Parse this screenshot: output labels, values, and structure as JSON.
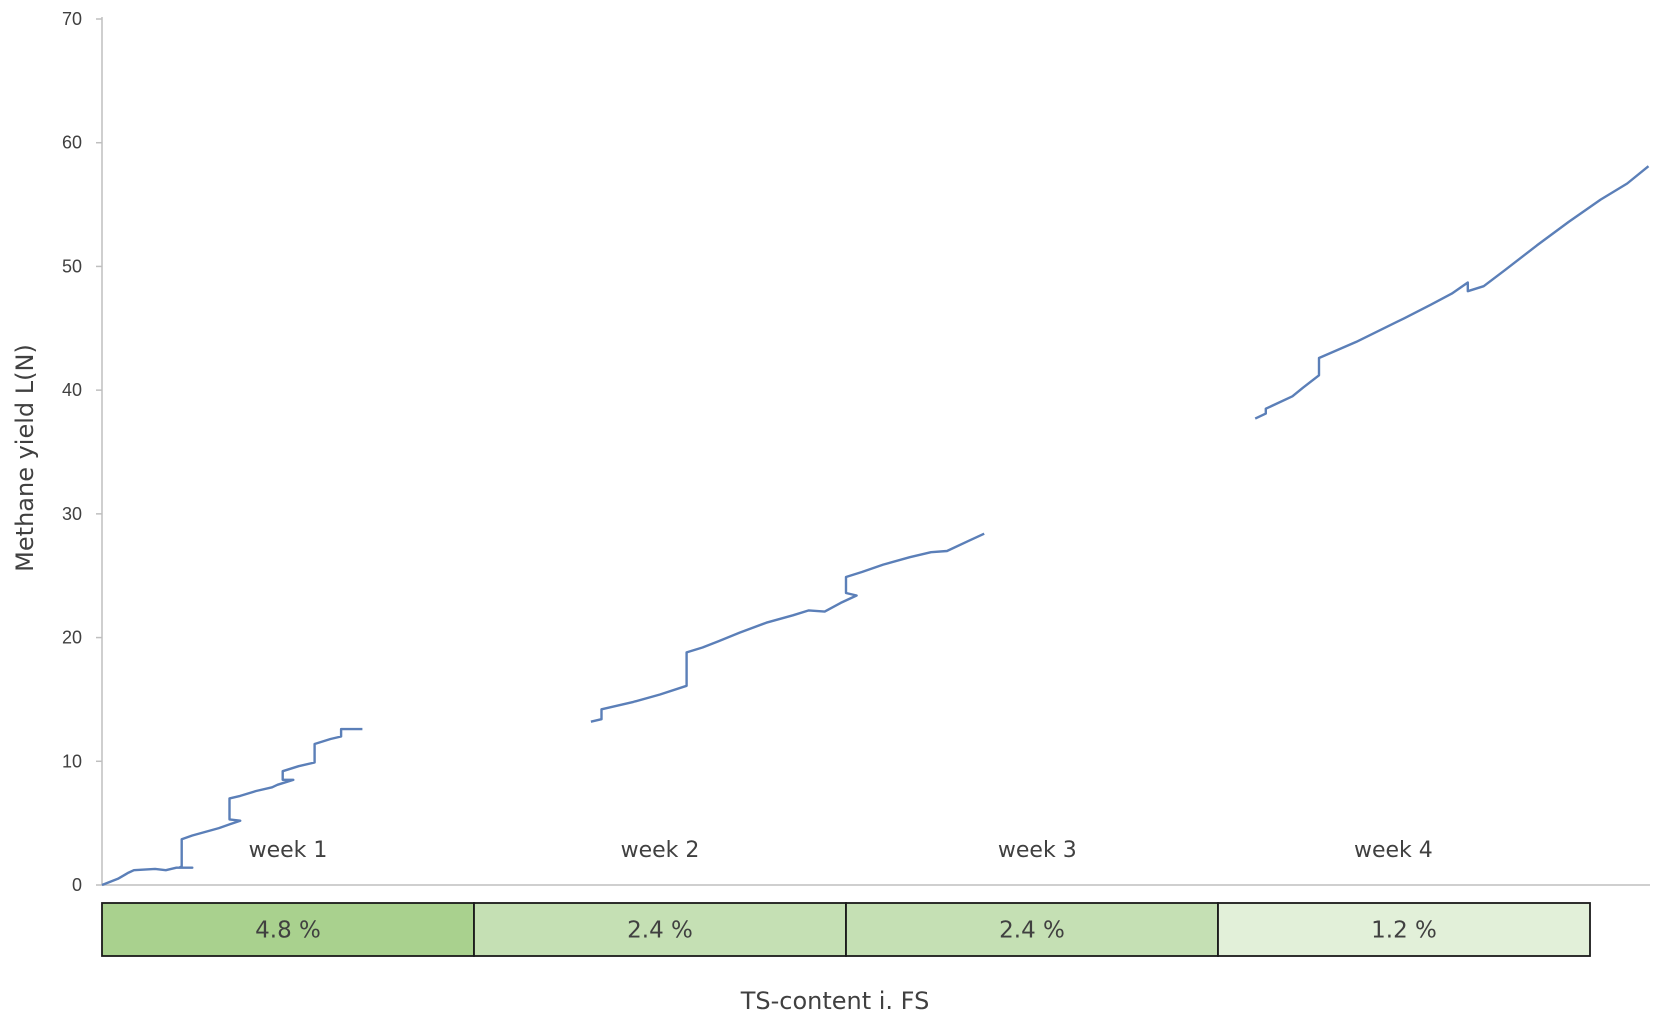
{
  "chart_data": {
    "type": "line",
    "title": "",
    "ylabel": "Methane yield L(N)",
    "xlabel": "TS-content i. FS",
    "ylim": [
      0,
      70
    ],
    "yticks": [
      0,
      10,
      20,
      30,
      40,
      50,
      60,
      70
    ],
    "xlim": [
      0,
      28
    ],
    "grid": false,
    "legend": "none",
    "line_color": "#5b7fb8",
    "week_labels": [
      {
        "label": "week 1",
        "x": 3.5
      },
      {
        "label": "week 2",
        "x": 10.5
      },
      {
        "label": "week 3",
        "x": 17.6
      },
      {
        "label": "week 4",
        "x": 24.3
      }
    ],
    "ts_bands": [
      {
        "label": "4.8 %",
        "x0": 0,
        "x1": 7,
        "color": "#a9d18e"
      },
      {
        "label": "2.4 %",
        "x0": 7,
        "x1": 14,
        "color": "#c5e0b4"
      },
      {
        "label": "2.4 %",
        "x0": 14,
        "x1": 21,
        "color": "#c5e0b4"
      },
      {
        "label": "1.2 %",
        "x0": 21,
        "x1": 28,
        "color": "#e2f0d9"
      }
    ],
    "series": [
      {
        "points": [
          [
            0.0,
            0.0
          ],
          [
            0.3,
            0.5
          ],
          [
            0.5,
            1.0
          ],
          [
            0.6,
            1.2
          ],
          [
            1.0,
            1.3
          ],
          [
            1.2,
            1.2
          ],
          [
            1.4,
            1.4
          ],
          [
            1.7,
            1.4
          ],
          [
            1.45,
            1.4
          ],
          [
            1.5,
            1.5
          ],
          [
            1.5,
            3.7
          ],
          [
            1.7,
            4.0
          ],
          [
            2.2,
            4.6
          ],
          [
            2.4,
            4.9
          ],
          [
            2.6,
            5.2
          ],
          [
            2.4,
            5.3
          ],
          [
            2.4,
            7.0
          ],
          [
            2.6,
            7.2
          ],
          [
            2.9,
            7.6
          ],
          [
            3.2,
            7.9
          ],
          [
            3.3,
            8.1
          ],
          [
            3.6,
            8.5
          ],
          [
            3.4,
            8.5
          ],
          [
            3.4,
            9.2
          ],
          [
            3.7,
            9.6
          ],
          [
            4.0,
            9.9
          ],
          [
            4.0,
            10.1
          ],
          [
            4.0,
            11.4
          ],
          [
            4.3,
            11.8
          ],
          [
            4.5,
            12.0
          ],
          [
            4.5,
            12.6
          ],
          [
            4.9,
            12.6
          ]
        ]
      },
      {
        "points": [
          [
            9.2,
            13.2
          ],
          [
            9.4,
            13.4
          ],
          [
            9.4,
            14.2
          ],
          [
            10.0,
            14.8
          ],
          [
            10.5,
            15.4
          ],
          [
            11.0,
            16.1
          ],
          [
            11.0,
            16.5
          ],
          [
            11.0,
            18.8
          ],
          [
            11.3,
            19.2
          ],
          [
            11.6,
            19.7
          ],
          [
            12.0,
            20.4
          ],
          [
            12.5,
            21.2
          ],
          [
            13.0,
            21.8
          ],
          [
            13.3,
            22.2
          ],
          [
            13.6,
            22.1
          ],
          [
            13.9,
            22.8
          ],
          [
            14.2,
            23.4
          ],
          [
            14.0,
            23.6
          ],
          [
            14.0,
            24.9
          ],
          [
            14.3,
            25.3
          ],
          [
            14.7,
            25.9
          ],
          [
            15.2,
            26.5
          ],
          [
            15.6,
            26.9
          ],
          [
            15.9,
            27.0
          ],
          [
            16.3,
            27.8
          ],
          [
            16.6,
            28.4
          ]
        ]
      },
      {
        "points": [
          [
            21.7,
            37.7
          ],
          [
            21.9,
            38.1
          ],
          [
            21.9,
            38.5
          ],
          [
            22.4,
            39.5
          ],
          [
            22.6,
            40.2
          ],
          [
            22.9,
            41.2
          ],
          [
            22.9,
            42.6
          ],
          [
            23.6,
            43.9
          ],
          [
            24.5,
            45.8
          ],
          [
            25.0,
            46.9
          ],
          [
            25.4,
            47.8
          ],
          [
            25.7,
            48.7
          ],
          [
            25.7,
            48.0
          ],
          [
            26.0,
            48.4
          ],
          [
            26.4,
            49.7
          ],
          [
            27.0,
            51.7
          ],
          [
            27.6,
            53.6
          ],
          [
            28.2,
            55.4
          ],
          [
            28.7,
            56.7
          ],
          [
            29.1,
            58.1
          ]
        ]
      }
    ]
  }
}
